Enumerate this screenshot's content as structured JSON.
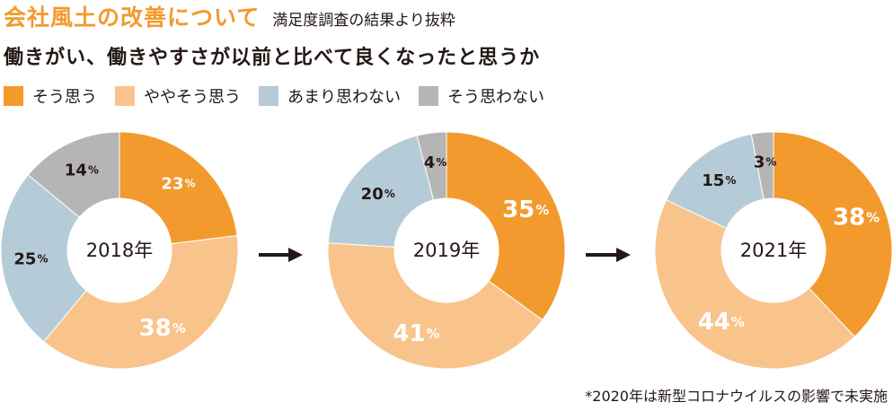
{
  "header": {
    "title": "会社風土の改善について",
    "subtitle": "満足度調査の結果より抜粋"
  },
  "question": "働きがい、働きやすさが以前と比べて良くなったと思うか",
  "legend": [
    {
      "label": "そう思う",
      "color": "#f39a2e"
    },
    {
      "label": "ややそう思う",
      "color": "#f9c38c"
    },
    {
      "label": "あまり思わない",
      "color": "#b5ccd8"
    },
    {
      "label": "そう思わない",
      "color": "#b5b5b6"
    }
  ],
  "chart_data": [
    {
      "type": "pie",
      "title": "2018年",
      "categories": [
        "そう思う",
        "ややそう思う",
        "あまり思わない",
        "そう思わない"
      ],
      "values": [
        23,
        38,
        25,
        14
      ],
      "unit": "%"
    },
    {
      "type": "pie",
      "title": "2019年",
      "categories": [
        "そう思う",
        "ややそう思う",
        "あまり思わない",
        "そう思わない"
      ],
      "values": [
        35,
        41,
        20,
        4
      ],
      "unit": "%"
    },
    {
      "type": "pie",
      "title": "2021年",
      "categories": [
        "そう思う",
        "ややそう思う",
        "あまり思わない",
        "そう思わない"
      ],
      "values": [
        38,
        44,
        15,
        3
      ],
      "unit": "%"
    }
  ],
  "footnote": "*2020年は新型コロナウイルスの影響で未実施"
}
